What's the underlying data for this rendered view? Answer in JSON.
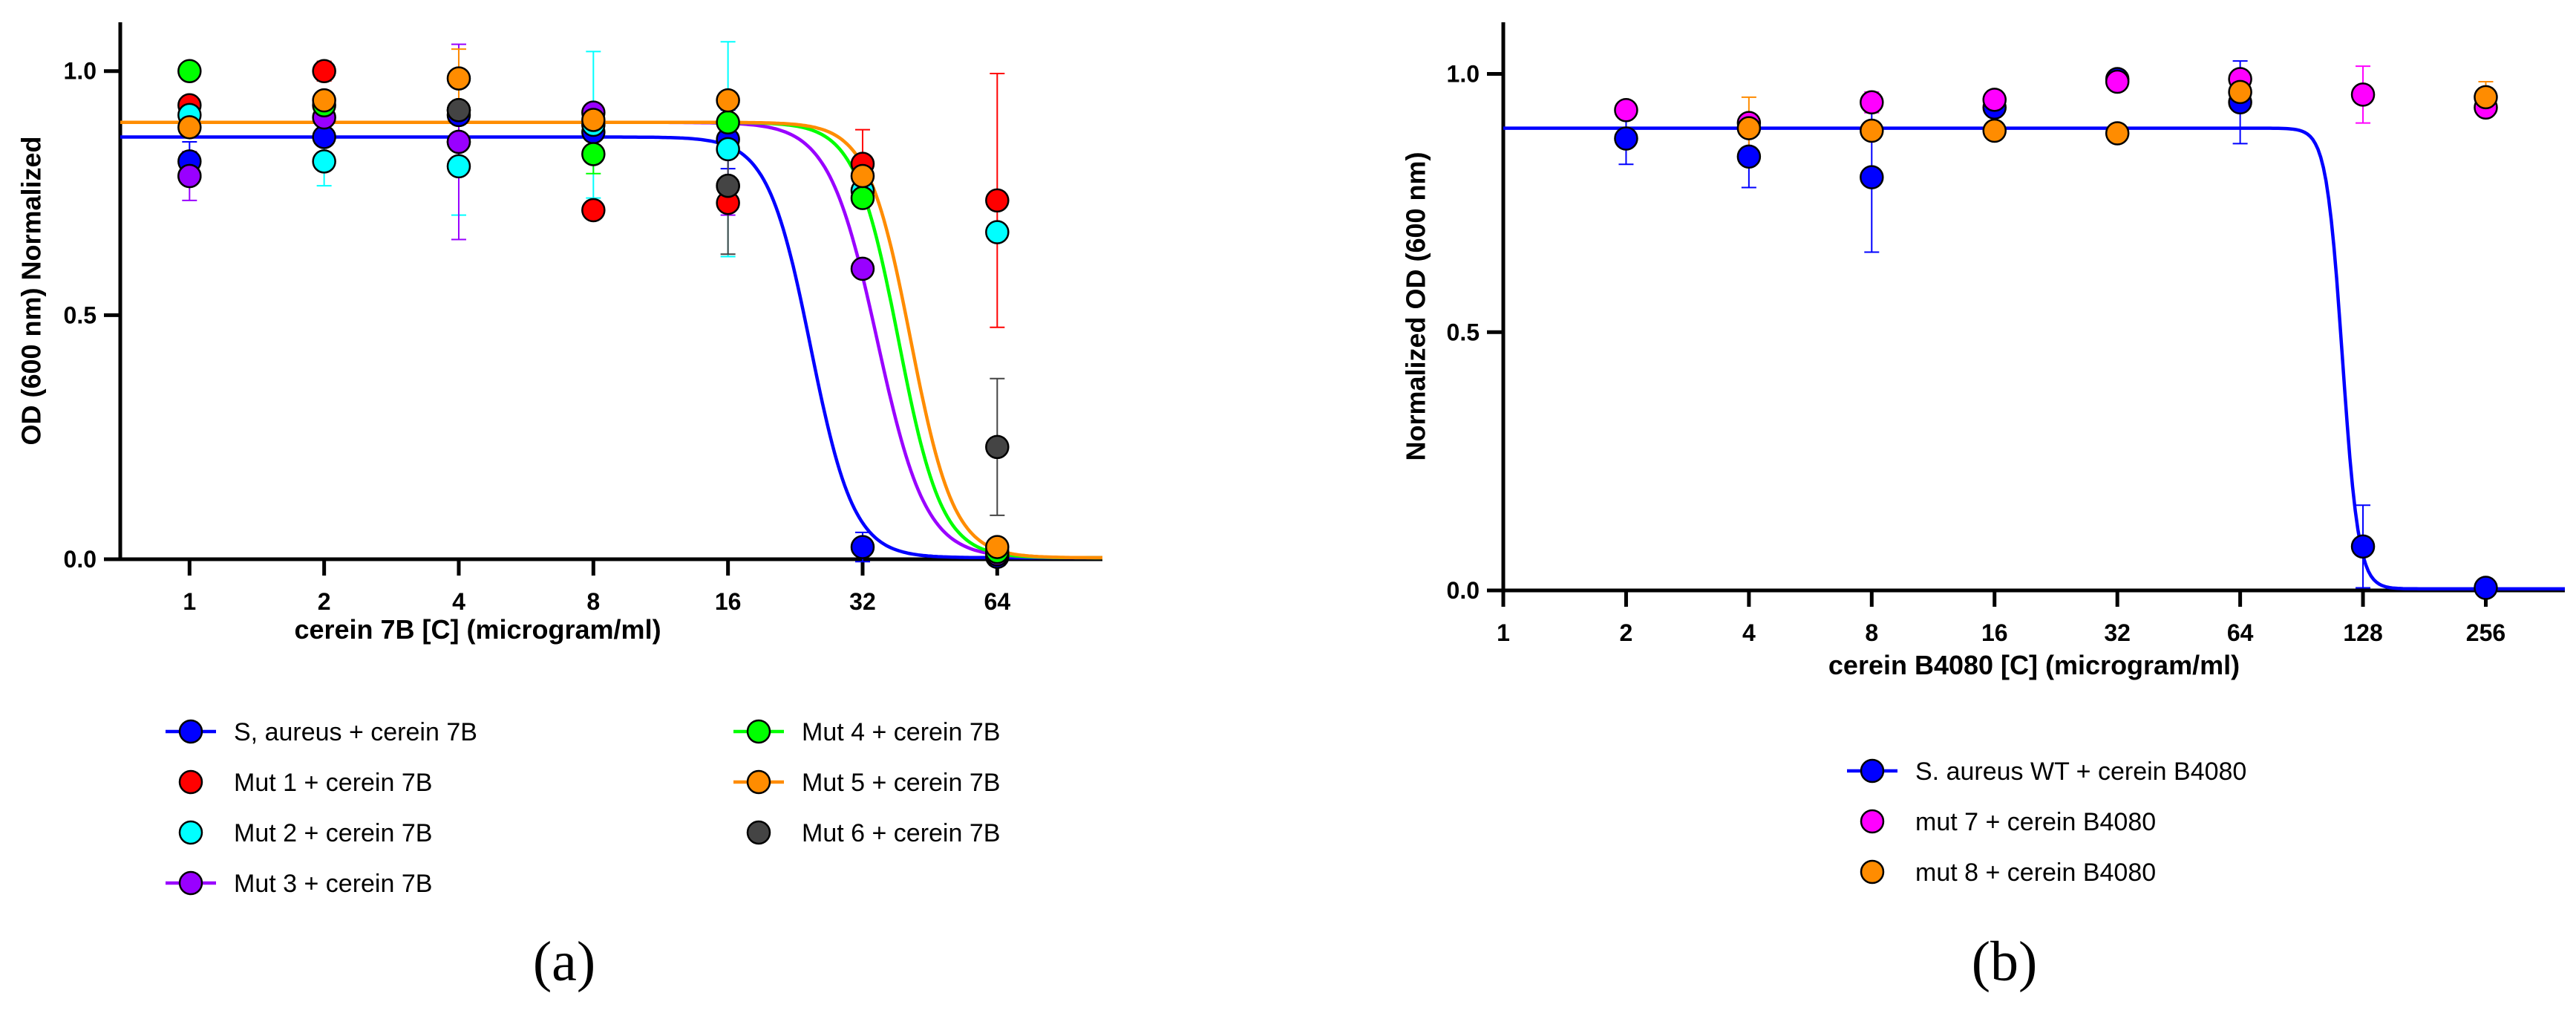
{
  "colors": {
    "saureus": "#0000ff",
    "mut1": "#ff0000",
    "mut2": "#00ffff",
    "mut3": "#9900ff",
    "mut4": "#00ff00",
    "mut5": "#ff8c00",
    "mut6": "#444444",
    "mut7": "#ff00ff",
    "mut8": "#ff8c00",
    "axis": "#000000"
  },
  "chart_data": [
    {
      "type": "scatter",
      "panel_label": "(a)",
      "xlabel": "cerein 7B [C] (microgram/ml)",
      "ylabel": "OD (600 nm) Normalized",
      "x_scale": "log2",
      "xlim": [
        0.7,
        110
      ],
      "ylim": [
        0,
        1.1
      ],
      "x_ticks": [
        1,
        2,
        4,
        8,
        16,
        32,
        64
      ],
      "x_tick_labels": [
        "1",
        "2",
        "4",
        "8",
        "16",
        "32",
        "64"
      ],
      "y_ticks": [
        0,
        0.5,
        1
      ],
      "y_tick_labels": [
        "0.0",
        "0.5",
        "1.0"
      ],
      "grid": false,
      "legend": "bottom, two columns",
      "series": [
        {
          "name": "S, aureus + cerein 7B",
          "color_key": "saureus",
          "has_line": true,
          "points": [
            [
              1,
              0.815
            ],
            [
              1,
              0.785
            ],
            [
              2,
              0.865
            ],
            [
              4,
              0.91
            ],
            [
              8,
              0.875
            ],
            [
              16,
              0.86
            ],
            [
              32,
              0.025
            ],
            [
              64,
              0.005
            ]
          ],
          "errors": [
            [
              1,
              0.815,
              0.04
            ],
            [
              8,
              0.875,
              0.03
            ],
            [
              16,
              0.86,
              0.06
            ],
            [
              32,
              0.025,
              0.03
            ]
          ],
          "fit": {
            "top": 0.865,
            "bottom": 0.003,
            "ec50": 24.5,
            "hill": 9
          }
        },
        {
          "name": "Mut 1 + cerein 7B",
          "color_key": "mut1",
          "has_line": false,
          "points": [
            [
              1,
              0.93
            ],
            [
              2,
              1.0
            ],
            [
              4,
              0.855
            ],
            [
              8,
              0.715
            ],
            [
              16,
              0.73
            ],
            [
              32,
              0.81
            ],
            [
              64,
              0.735
            ]
          ],
          "errors": [
            [
              32,
              0.81,
              0.07
            ],
            [
              64,
              0.735,
              0.26
            ],
            [
              2,
              1.0,
              0.02
            ]
          ]
        },
        {
          "name": "Mut 2 + cerein 7B",
          "color_key": "mut2",
          "has_line": false,
          "points": [
            [
              1,
              0.91
            ],
            [
              2,
              0.815
            ],
            [
              4,
              0.805
            ],
            [
              8,
              0.89
            ],
            [
              16,
              0.84
            ],
            [
              32,
              0.755
            ],
            [
              64,
              0.67
            ]
          ],
          "errors": [
            [
              4,
              0.805,
              0.1
            ],
            [
              8,
              0.89,
              0.15
            ],
            [
              16,
              0.84,
              0.22
            ],
            [
              2,
              0.815,
              0.05
            ]
          ]
        },
        {
          "name": "Mut 3 + cerein 7B",
          "color_key": "mut3",
          "has_line": true,
          "points": [
            [
              1,
              0.785
            ],
            [
              2,
              0.905
            ],
            [
              4,
              0.855
            ],
            [
              8,
              0.915
            ],
            [
              16,
              0.765
            ],
            [
              32,
              0.595
            ],
            [
              64,
              0.01
            ]
          ],
          "errors": [
            [
              1,
              0.785,
              0.05
            ],
            [
              4,
              0.855,
              0.2
            ],
            [
              16,
              0.765,
              0.06
            ]
          ],
          "fit": {
            "top": 0.895,
            "bottom": 0.003,
            "ec50": 34.5,
            "hill": 8
          }
        },
        {
          "name": "Mut 4 + cerein 7B",
          "color_key": "mut4",
          "has_line": true,
          "points": [
            [
              1,
              1.0
            ],
            [
              2,
              0.93
            ],
            [
              4,
              0.92
            ],
            [
              8,
              0.83
            ],
            [
              16,
              0.895
            ],
            [
              32,
              0.74
            ],
            [
              64,
              0.015
            ]
          ],
          "errors": [
            [
              8,
              0.83,
              0.04
            ]
          ],
          "fit": {
            "top": 0.895,
            "bottom": 0.003,
            "ec50": 38.5,
            "hill": 9
          }
        },
        {
          "name": "Mut 5 + cerein 7B",
          "color_key": "mut5",
          "has_line": true,
          "points": [
            [
              1,
              0.885
            ],
            [
              2,
              0.94
            ],
            [
              4,
              0.985
            ],
            [
              8,
              0.9
            ],
            [
              16,
              0.94
            ],
            [
              32,
              0.785
            ],
            [
              64,
              0.025
            ]
          ],
          "errors": [
            [
              4,
              0.985,
              0.06
            ],
            [
              32,
              0.785,
              0.04
            ]
          ],
          "fit": {
            "top": 0.895,
            "bottom": 0.003,
            "ec50": 41,
            "hill": 9
          }
        },
        {
          "name": "Mut 6 + cerein 7B",
          "color_key": "mut6",
          "has_line": false,
          "points": [
            [
              4,
              0.92
            ],
            [
              16,
              0.765
            ],
            [
              64,
              0.23
            ]
          ],
          "errors": [
            [
              64,
              0.23,
              0.14
            ],
            [
              16,
              0.765,
              0.14
            ]
          ]
        }
      ]
    },
    {
      "type": "scatter",
      "panel_label": "(b)",
      "xlabel": "cerein B4080 [C] (microgram/ml)",
      "ylabel": "Normalized OD (600 nm)",
      "x_scale": "log2",
      "xlim": [
        1,
        400
      ],
      "ylim": [
        0,
        1.1
      ],
      "x_ticks": [
        1,
        2,
        4,
        8,
        16,
        32,
        64,
        128,
        256
      ],
      "x_tick_labels": [
        "1",
        "2",
        "4",
        "8",
        "16",
        "32",
        "64",
        "128",
        "256"
      ],
      "y_ticks": [
        0,
        0.5,
        1
      ],
      "y_tick_labels": [
        "0.0",
        "0.5",
        "1.0"
      ],
      "grid": false,
      "legend": "bottom",
      "series": [
        {
          "name": "S. aureus WT + cerein B4080",
          "color_key": "saureus",
          "has_line": true,
          "points": [
            [
              2,
              0.875
            ],
            [
              4,
              0.84
            ],
            [
              8,
              0.8
            ],
            [
              16,
              0.935
            ],
            [
              32,
              0.99
            ],
            [
              64,
              0.945
            ],
            [
              128,
              0.085
            ],
            [
              256,
              0.005
            ]
          ],
          "errors": [
            [
              2,
              0.875,
              0.05
            ],
            [
              4,
              0.84,
              0.06
            ],
            [
              8,
              0.8,
              0.145
            ],
            [
              64,
              0.945,
              0.08
            ],
            [
              128,
              0.085,
              0.08
            ]
          ],
          "fit": {
            "top": 0.895,
            "bottom": 0.003,
            "ec50": 114,
            "hill": 22
          }
        },
        {
          "name": "mut 7 + cerein B4080",
          "color_key": "mut7",
          "has_line": false,
          "points": [
            [
              2,
              0.93
            ],
            [
              4,
              0.905
            ],
            [
              8,
              0.945
            ],
            [
              16,
              0.95
            ],
            [
              32,
              0.985
            ],
            [
              64,
              0.99
            ],
            [
              128,
              0.96
            ],
            [
              256,
              0.935
            ]
          ],
          "errors": [
            [
              128,
              0.96,
              0.055
            ],
            [
              8,
              0.945,
              0.02
            ]
          ]
        },
        {
          "name": "mut 8 + cerein B4080",
          "color_key": "mut8",
          "has_line": false,
          "points": [
            [
              4,
              0.895
            ],
            [
              8,
              0.89
            ],
            [
              16,
              0.89
            ],
            [
              32,
              0.885
            ],
            [
              64,
              0.965
            ],
            [
              256,
              0.955
            ]
          ],
          "errors": [
            [
              4,
              0.895,
              0.06
            ],
            [
              256,
              0.955,
              0.03
            ]
          ]
        }
      ]
    }
  ]
}
